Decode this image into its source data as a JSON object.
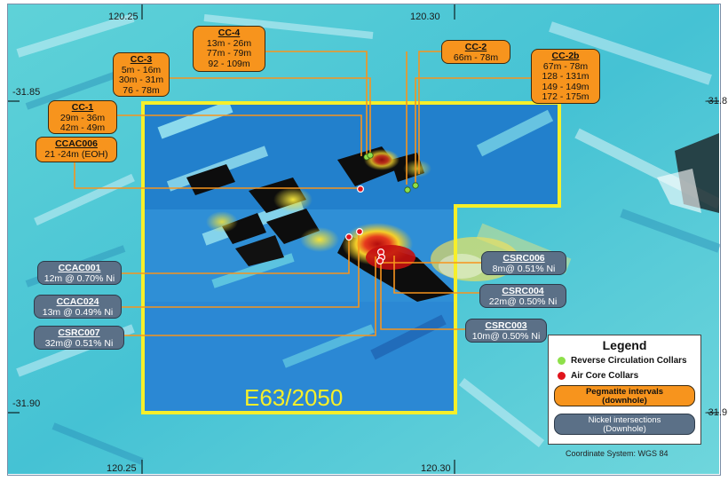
{
  "axes": {
    "top_lon": [
      "120.25",
      "120.30"
    ],
    "bottom_lon": [
      "120.25",
      "120.30"
    ],
    "left_lat": [
      "-31.85",
      "-31.90"
    ],
    "right_lat": [
      "-31.8",
      "-31.9"
    ]
  },
  "tenement": "E63/2050",
  "pegmatite_labels": [
    {
      "id": "CC-4",
      "lines": [
        "13m - 26m",
        "77m - 79m",
        "92 - 109m"
      ]
    },
    {
      "id": "CC-3",
      "lines": [
        "5m - 16m",
        "30m - 31m",
        "76 - 78m"
      ]
    },
    {
      "id": "CC-2",
      "lines": [
        "66m - 78m"
      ]
    },
    {
      "id": "CC-2b",
      "lines": [
        "67m - 78m",
        "128 - 131m",
        "149 - 149m",
        "172 - 175m"
      ]
    },
    {
      "id": "CC-1",
      "lines": [
        "29m - 36m",
        "42m - 49m"
      ]
    },
    {
      "id": "CCAC006",
      "lines": [
        "21 -24m (EOH)"
      ]
    }
  ],
  "nickel_labels": [
    {
      "id": "CCAC001",
      "lines": [
        "12m @ 0.70% Ni"
      ]
    },
    {
      "id": "CCAC024",
      "lines": [
        "13m @ 0.49% Ni"
      ]
    },
    {
      "id": "CSRC007",
      "lines": [
        "32m@ 0.51% Ni"
      ]
    },
    {
      "id": "CSRC006",
      "lines": [
        "8m@ 0.51% Ni"
      ]
    },
    {
      "id": "CSRC004",
      "lines": [
        "22m@ 0.50% Ni"
      ]
    },
    {
      "id": "CSRC003",
      "lines": [
        "10m@ 0.50% Ni"
      ]
    }
  ],
  "legend": {
    "title": "Legend",
    "rc_label": "Reverse Circulation Collars",
    "ac_label": "Air Core Collars",
    "peg_label": "Pegmatite intervals\n(downhole)",
    "ni_label": "Nickel intersections\n(Downhole)"
  },
  "coordinate_system": "Coordinate System: WGS 84",
  "colors": {
    "rc_collar": "#8ee04a",
    "ac_collar": "#e0141c",
    "pegmatite_box": "#f7941d",
    "nickel_box": "#5b7087",
    "tenement_outline": "#f6ef2a",
    "leader_line": "#f7941d"
  }
}
